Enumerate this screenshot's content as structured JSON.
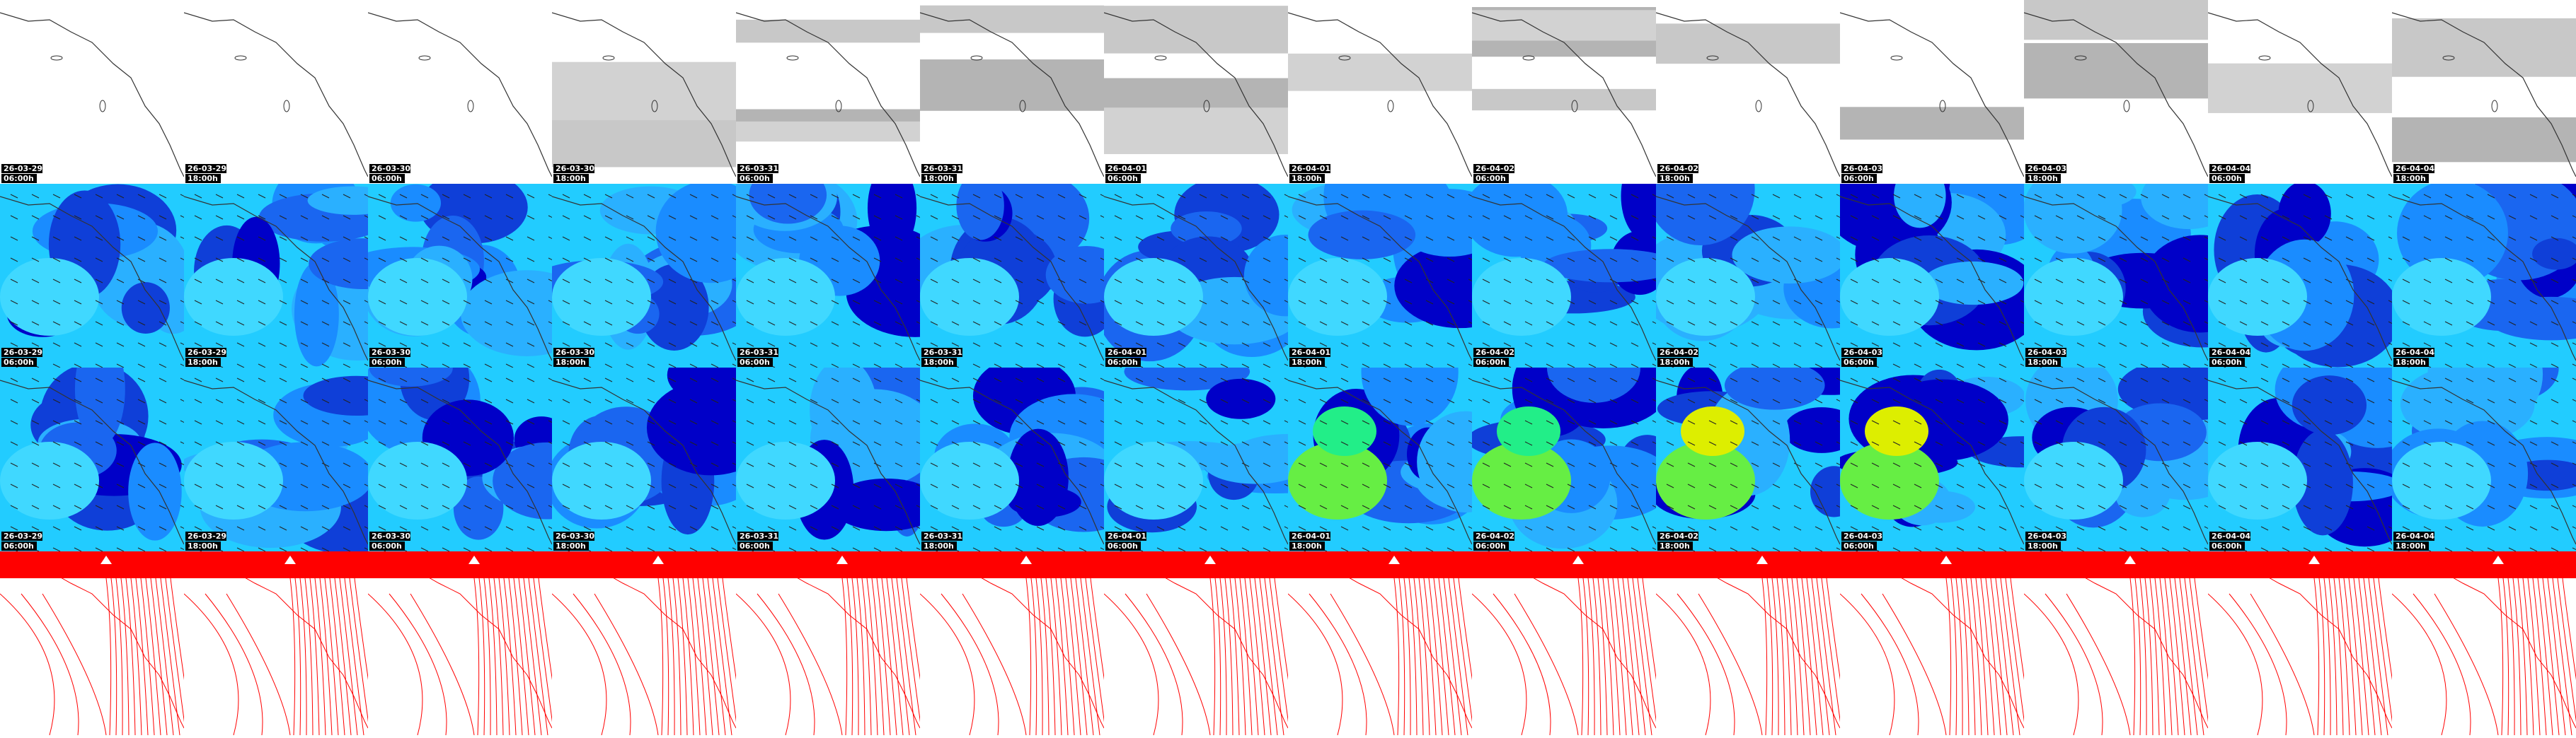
{
  "panels": {
    "columns": [
      {
        "date": "26-03-29",
        "time": "06:00h"
      },
      {
        "date": "26-03-29",
        "time": "18:00h"
      },
      {
        "date": "26-03-30",
        "time": "06:00h"
      },
      {
        "date": "26-03-30",
        "time": "18:00h"
      },
      {
        "date": "26-03-31",
        "time": "06:00h"
      },
      {
        "date": "26-03-31",
        "time": "18:00h"
      },
      {
        "date": "26-04-01",
        "time": "06:00h"
      },
      {
        "date": "26-04-01",
        "time": "18:00h"
      },
      {
        "date": "26-04-02",
        "time": "06:00h"
      },
      {
        "date": "26-04-02",
        "time": "18:00h"
      },
      {
        "date": "26-04-03",
        "time": "06:00h"
      },
      {
        "date": "26-04-03",
        "time": "18:00h"
      },
      {
        "date": "26-04-04",
        "time": "06:00h"
      },
      {
        "date": "26-04-04",
        "time": "18:00h"
      }
    ]
  }
}
